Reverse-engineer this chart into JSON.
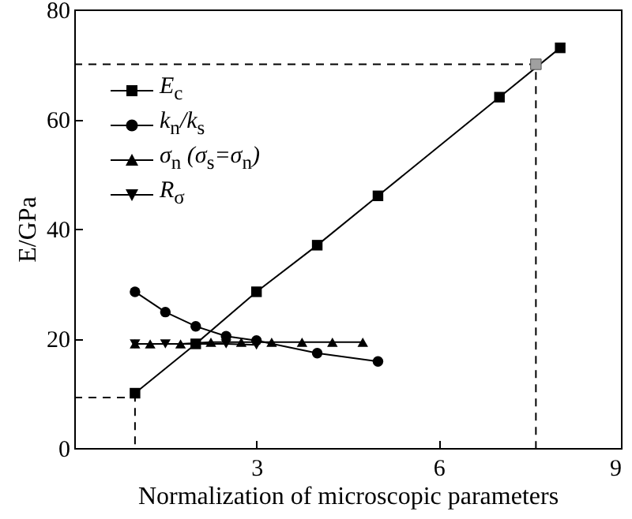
{
  "chart_data": {
    "type": "line",
    "xlabel": "Normalization of microscopic parameters",
    "ylabel": "E/GPa",
    "xlim": [
      0,
      9
    ],
    "ylim": [
      0,
      80
    ],
    "xticks": [
      3,
      6,
      9
    ],
    "yticks": [
      0,
      20,
      40,
      60,
      80
    ],
    "grid": false,
    "legend": "top left",
    "series": [
      {
        "name": "E$_{c}$",
        "color": "#000000",
        "marker": "square",
        "x": [
          1,
          2,
          3,
          4,
          5,
          7,
          8
        ],
        "values": [
          10,
          19,
          28.5,
          37,
          46,
          64,
          73
        ]
      },
      {
        "name": "k$_{n}$/k$_{s}$",
        "color": "#000000",
        "marker": "circle",
        "x": [
          1,
          1.5,
          2,
          2.5,
          3,
          4,
          5
        ],
        "values": [
          28.5,
          24.8,
          22.2,
          20.4,
          19.6,
          17.3,
          15.8
        ]
      },
      {
        "name": "σ$_{n}$ (σ$_{s}$=σ$_{n}$)",
        "color": "#000000",
        "marker": "triangle",
        "x": [
          1,
          1.25,
          1.75,
          2.25,
          2.75,
          3.25,
          3.75,
          4.25,
          4.75
        ],
        "values": [
          19,
          19,
          19,
          19.3,
          19.3,
          19.3,
          19.3,
          19.3,
          19.3
        ]
      },
      {
        "name": "R$_{σ}$",
        "color": "#000000",
        "marker": "triangle-down",
        "x": [
          1,
          1.5,
          2,
          2.5,
          3
        ],
        "values": [
          19,
          19,
          19,
          19,
          18.8
        ]
      },
      {
        "type": "line",
        "color": "#000000",
        "marker": "none",
        "line_style": "dashed",
        "x": [
          0,
          1,
          1
        ],
        "values": [
          9.2,
          9.2,
          0
        ]
      },
      {
        "type": "line",
        "color": "#000000",
        "marker": "none",
        "line_style": "dashed",
        "x": [
          0,
          7.6,
          7.6
        ],
        "values": [
          70,
          70,
          0
        ]
      },
      {
        "type": "scatter",
        "color": "#a0a0a0",
        "marker": "square",
        "x": [
          7.6
        ],
        "values": [
          70
        ]
      }
    ]
  }
}
